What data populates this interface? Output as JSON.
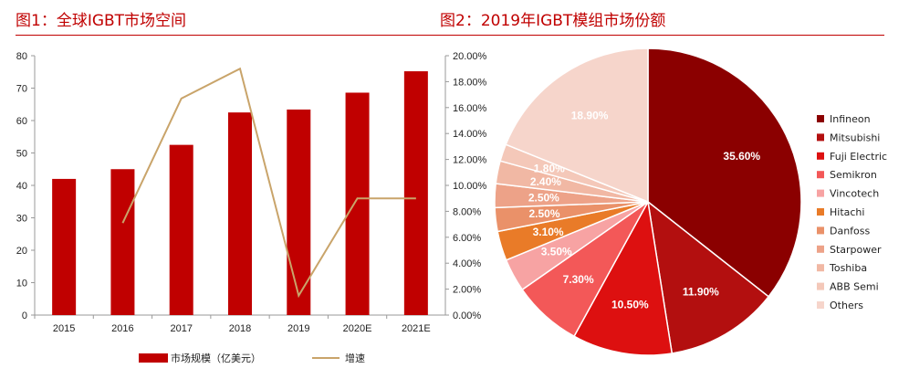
{
  "titles": {
    "left": "图1：全球IGBT市场空间",
    "right": "图2：2019年IGBT模组市场份额"
  },
  "chart_data": [
    {
      "type": "bar",
      "categories": [
        "2015",
        "2016",
        "2017",
        "2018",
        "2019",
        "2020E",
        "2021E"
      ],
      "series": [
        {
          "name": "市场规模（亿美元）",
          "type": "bar",
          "axis": "left",
          "color": "#c00000",
          "values": [
            42,
            45,
            52.5,
            62.5,
            63.4,
            68.6,
            75.2
          ]
        },
        {
          "name": "增速",
          "type": "line",
          "axis": "right",
          "color": "#c9a46a",
          "values": [
            null,
            7.1,
            16.7,
            19.0,
            1.5,
            9.0,
            9.0
          ]
        }
      ],
      "ylim": [
        0,
        80
      ],
      "yticks": [
        "0",
        "10",
        "20",
        "30",
        "40",
        "50",
        "60",
        "70",
        "80"
      ],
      "y2lim": [
        0,
        20
      ],
      "y2ticks": [
        "0.00%",
        "2.00%",
        "4.00%",
        "6.00%",
        "8.00%",
        "10.00%",
        "12.00%",
        "14.00%",
        "16.00%",
        "18.00%",
        "20.00%"
      ],
      "legend_position": "bottom"
    },
    {
      "type": "pie",
      "legend_position": "right",
      "slices": [
        {
          "name": "Infineon",
          "value": 35.6,
          "label": "35.60%",
          "color": "#8b0000"
        },
        {
          "name": "Mitsubishi",
          "value": 11.9,
          "label": "11.90%",
          "color": "#b30f0f"
        },
        {
          "name": "Fuji Electric",
          "value": 10.5,
          "label": "10.50%",
          "color": "#dd1010"
        },
        {
          "name": "Semikron",
          "value": 7.3,
          "label": "7.30%",
          "color": "#f35858"
        },
        {
          "name": "Vincotech",
          "value": 3.5,
          "label": "3.50%",
          "color": "#f7a3a3"
        },
        {
          "name": "Hitachi",
          "value": 3.1,
          "label": "3.10%",
          "color": "#e97b28"
        },
        {
          "name": "Danfoss",
          "value": 2.5,
          "label": "2.50%",
          "color": "#ea9169"
        },
        {
          "name": "Starpower",
          "value": 2.5,
          "label": "2.50%",
          "color": "#eda288"
        },
        {
          "name": "Toshiba",
          "value": 2.4,
          "label": "2.40%",
          "color": "#f1b8a4"
        },
        {
          "name": "ABB Semi",
          "value": 1.8,
          "label": "1.80%",
          "color": "#f4c8b9"
        },
        {
          "name": "Others",
          "value": 18.9,
          "label": "18.90%",
          "color": "#f6d5cb"
        }
      ]
    }
  ]
}
